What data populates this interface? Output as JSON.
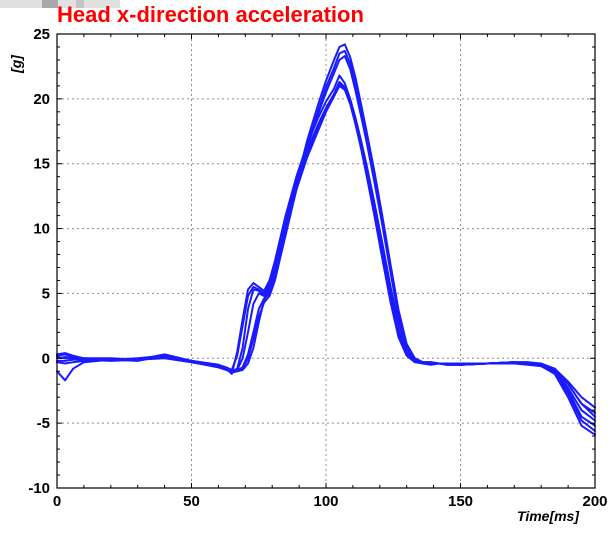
{
  "chart_data": {
    "type": "line",
    "title": "Head x-direction acceleration",
    "xlabel": "Time[ms]",
    "ylabel": "[g]",
    "xlim": [
      0,
      200
    ],
    "ylim": [
      -10,
      25
    ],
    "xticks": [
      0,
      50,
      100,
      150,
      200
    ],
    "yticks": [
      -10,
      -5,
      0,
      5,
      10,
      15,
      20,
      25
    ],
    "grid": true,
    "line_color": "#1a1aff",
    "title_color": "#ff0000",
    "series": [
      {
        "x": [
          0,
          3,
          6,
          10,
          20,
          30,
          40,
          50,
          60,
          63,
          65,
          67,
          69,
          71,
          73,
          75,
          77,
          79,
          81,
          85,
          89,
          93,
          97,
          100,
          103,
          105,
          107,
          109,
          111,
          113,
          115,
          118,
          121,
          124,
          127,
          130,
          133,
          136,
          139,
          142,
          145,
          150,
          160,
          170,
          175,
          180,
          185,
          190,
          195,
          200
        ],
        "y": [
          -0.3,
          -0.4,
          -0.3,
          -0.2,
          -0.1,
          -0.1,
          0.1,
          -0.3,
          -0.6,
          -0.8,
          -1.2,
          0.5,
          3.0,
          5.3,
          5.8,
          5.5,
          5.2,
          6.0,
          7.5,
          11.0,
          14.0,
          16.5,
          18.5,
          19.8,
          20.8,
          21.8,
          21.2,
          20.0,
          18.5,
          16.8,
          15.0,
          12.0,
          8.8,
          5.5,
          2.7,
          0.8,
          -0.1,
          -0.3,
          -0.4,
          -0.4,
          -0.5,
          -0.5,
          -0.4,
          -0.3,
          -0.4,
          -0.5,
          -0.8,
          -2.0,
          -3.5,
          -4.5
        ]
      },
      {
        "x": [
          0,
          3,
          6,
          10,
          20,
          30,
          40,
          50,
          60,
          63,
          65,
          67,
          69,
          71,
          73,
          75,
          77,
          79,
          81,
          85,
          89,
          93,
          97,
          100,
          103,
          105,
          107,
          109,
          111,
          113,
          115,
          118,
          121,
          124,
          127,
          130,
          133,
          136,
          139,
          142,
          145,
          150,
          160,
          170,
          175,
          180,
          185,
          190,
          195,
          200
        ],
        "y": [
          0.3,
          0.4,
          0.2,
          0.0,
          0.0,
          -0.1,
          0.3,
          -0.2,
          -0.5,
          -0.7,
          -0.9,
          0.2,
          2.5,
          4.8,
          5.5,
          5.3,
          5.0,
          5.8,
          7.2,
          10.5,
          13.5,
          16.0,
          18.0,
          19.3,
          20.4,
          21.3,
          20.9,
          19.8,
          18.2,
          16.5,
          14.6,
          11.6,
          8.3,
          5.0,
          2.2,
          0.5,
          -0.2,
          -0.3,
          -0.4,
          -0.4,
          -0.4,
          -0.5,
          -0.4,
          -0.4,
          -0.5,
          -0.6,
          -1.0,
          -2.5,
          -4.5,
          -5.2
        ]
      },
      {
        "x": [
          0,
          3,
          6,
          10,
          20,
          30,
          40,
          50,
          60,
          63,
          65,
          67,
          69,
          71,
          73,
          75,
          77,
          79,
          81,
          85,
          89,
          93,
          97,
          100,
          103,
          105,
          107,
          109,
          111,
          113,
          115,
          118,
          121,
          124,
          127,
          130,
          133,
          136,
          139,
          142,
          145,
          150,
          160,
          170,
          175,
          180,
          185,
          190,
          195,
          200
        ],
        "y": [
          -1.0,
          -1.7,
          -0.8,
          -0.3,
          -0.1,
          -0.2,
          0.2,
          -0.3,
          -0.6,
          -0.8,
          -1.0,
          -0.9,
          0.0,
          2.0,
          4.2,
          5.0,
          4.8,
          5.4,
          6.8,
          10.0,
          13.0,
          15.5,
          17.5,
          19.0,
          20.2,
          21.0,
          20.7,
          19.6,
          18.0,
          16.2,
          14.2,
          11.0,
          7.6,
          4.3,
          1.6,
          0.2,
          -0.3,
          -0.4,
          -0.5,
          -0.4,
          -0.5,
          -0.5,
          -0.4,
          -0.3,
          -0.4,
          -0.6,
          -1.2,
          -3.0,
          -5.2,
          -5.9
        ]
      },
      {
        "x": [
          0,
          3,
          6,
          10,
          20,
          30,
          40,
          50,
          60,
          63,
          65,
          67,
          69,
          71,
          73,
          75,
          77,
          79,
          81,
          85,
          89,
          93,
          97,
          100,
          103,
          105,
          107,
          109,
          111,
          113,
          115,
          118,
          121,
          124,
          127,
          130,
          133,
          136,
          139,
          142,
          145,
          150,
          160,
          170,
          175,
          180,
          185,
          190,
          195,
          200
        ],
        "y": [
          0.0,
          0.1,
          0.0,
          -0.1,
          -0.1,
          -0.1,
          0.0,
          -0.3,
          -0.7,
          -0.9,
          -1.1,
          -1.0,
          -0.8,
          0.0,
          1.5,
          3.2,
          4.3,
          4.8,
          6.0,
          9.5,
          13.0,
          16.2,
          18.8,
          20.5,
          22.0,
          23.0,
          23.3,
          22.3,
          20.6,
          18.7,
          16.8,
          13.6,
          10.2,
          6.6,
          3.2,
          0.8,
          -0.1,
          -0.3,
          -0.3,
          -0.4,
          -0.4,
          -0.5,
          -0.4,
          -0.3,
          -0.4,
          -0.5,
          -0.9,
          -2.3,
          -4.0,
          -4.8
        ]
      },
      {
        "x": [
          0,
          3,
          6,
          10,
          20,
          30,
          40,
          50,
          60,
          63,
          65,
          67,
          69,
          71,
          73,
          75,
          77,
          79,
          81,
          85,
          89,
          93,
          97,
          100,
          103,
          105,
          107,
          109,
          111,
          113,
          115,
          118,
          121,
          124,
          127,
          130,
          133,
          136,
          139,
          142,
          145,
          150,
          160,
          170,
          175,
          180,
          185,
          190,
          195,
          200
        ],
        "y": [
          0.1,
          0.0,
          0.0,
          -0.1,
          -0.2,
          -0.1,
          0.1,
          -0.2,
          -0.6,
          -0.8,
          -1.0,
          -1.0,
          -0.9,
          -0.4,
          0.8,
          2.8,
          4.5,
          5.2,
          6.3,
          9.8,
          13.5,
          16.8,
          19.5,
          21.4,
          23.0,
          24.0,
          24.2,
          23.2,
          21.6,
          19.6,
          17.6,
          14.4,
          10.9,
          7.2,
          3.7,
          1.1,
          0.0,
          -0.3,
          -0.3,
          -0.4,
          -0.4,
          -0.4,
          -0.4,
          -0.3,
          -0.3,
          -0.4,
          -0.8,
          -1.8,
          -3.0,
          -3.8
        ]
      },
      {
        "x": [
          0,
          3,
          6,
          10,
          20,
          30,
          40,
          50,
          60,
          63,
          65,
          67,
          69,
          71,
          73,
          75,
          77,
          79,
          81,
          85,
          89,
          93,
          97,
          100,
          103,
          105,
          107,
          109,
          111,
          113,
          115,
          118,
          121,
          124,
          127,
          130,
          133,
          136,
          139,
          142,
          145,
          150,
          160,
          170,
          175,
          180,
          185,
          190,
          195,
          200
        ],
        "y": [
          -0.2,
          -0.2,
          -0.1,
          -0.1,
          -0.1,
          0.0,
          0.2,
          -0.3,
          -0.6,
          -0.8,
          -1.0,
          -0.8,
          0.8,
          3.8,
          5.3,
          5.2,
          4.9,
          5.5,
          6.9,
          10.2,
          13.3,
          15.8,
          17.8,
          19.2,
          20.3,
          21.1,
          20.8,
          19.7,
          18.1,
          16.3,
          14.4,
          11.3,
          8.0,
          4.7,
          1.9,
          0.4,
          -0.2,
          -0.3,
          -0.4,
          -0.4,
          -0.5,
          -0.5,
          -0.4,
          -0.3,
          -0.4,
          -0.5,
          -1.1,
          -2.7,
          -4.8,
          -5.6
        ]
      },
      {
        "x": [
          0,
          3,
          6,
          10,
          20,
          30,
          40,
          50,
          60,
          63,
          65,
          67,
          69,
          71,
          73,
          75,
          77,
          79,
          81,
          85,
          89,
          93,
          97,
          100,
          103,
          105,
          107,
          109,
          111,
          113,
          115,
          118,
          121,
          124,
          127,
          130,
          133,
          136,
          139,
          142,
          145,
          150,
          160,
          170,
          175,
          180,
          185,
          190,
          195,
          200
        ],
        "y": [
          0.2,
          0.3,
          0.1,
          0.0,
          -0.1,
          -0.1,
          0.2,
          -0.2,
          -0.5,
          -0.8,
          -1.0,
          -0.9,
          -0.7,
          0.3,
          2.0,
          3.8,
          4.6,
          5.0,
          6.2,
          9.7,
          13.2,
          16.4,
          19.0,
          20.9,
          22.4,
          23.5,
          23.7,
          22.7,
          21.0,
          19.1,
          17.1,
          13.9,
          10.5,
          6.9,
          3.4,
          0.9,
          -0.1,
          -0.3,
          -0.3,
          -0.4,
          -0.4,
          -0.5,
          -0.4,
          -0.3,
          -0.3,
          -0.5,
          -0.8,
          -2.0,
          -3.5,
          -4.2
        ]
      }
    ]
  }
}
